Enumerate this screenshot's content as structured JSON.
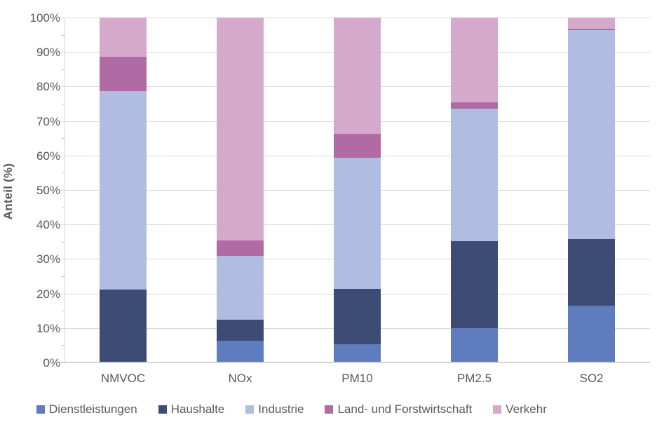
{
  "chart_data": {
    "type": "bar",
    "stacked": true,
    "stacking": "percent",
    "title": "",
    "xlabel": "",
    "ylabel": "Anteil (%)",
    "ylim": [
      0,
      100
    ],
    "ytick_step": 10,
    "ytick_labels": [
      "0%",
      "10%",
      "20%",
      "30%",
      "40%",
      "50%",
      "60%",
      "70%",
      "80%",
      "90%",
      "100%"
    ],
    "grid": true,
    "legend_position": "bottom",
    "categories": [
      "NMVOC",
      "NOx",
      "PM10",
      "PM2.5",
      "SO2"
    ],
    "series": [
      {
        "name": "Dienstleistungen",
        "color": "#5E7CBE",
        "values": [
          0,
          6.3,
          5.2,
          10.0,
          16.5
        ]
      },
      {
        "name": "Haushalte",
        "color": "#3D4C74",
        "values": [
          21.2,
          6.1,
          16.2,
          25.2,
          19.3
        ]
      },
      {
        "name": "Industrie",
        "color": "#B0BDE1",
        "values": [
          57.5,
          18.4,
          38.0,
          38.3,
          60.6
        ]
      },
      {
        "name": "Land- und Forstwirtschaft",
        "color": "#B06BA4",
        "values": [
          10.0,
          4.5,
          6.9,
          1.9,
          0.4
        ]
      },
      {
        "name": "Verkehr",
        "color": "#D5A9CB",
        "values": [
          11.3,
          64.7,
          33.7,
          24.6,
          3.2
        ]
      }
    ],
    "style": {
      "text_color": "#595959",
      "gridline_color": "#D9D9D9",
      "axis_color": "#D2D2D2",
      "background": "#FFFFFF"
    }
  }
}
